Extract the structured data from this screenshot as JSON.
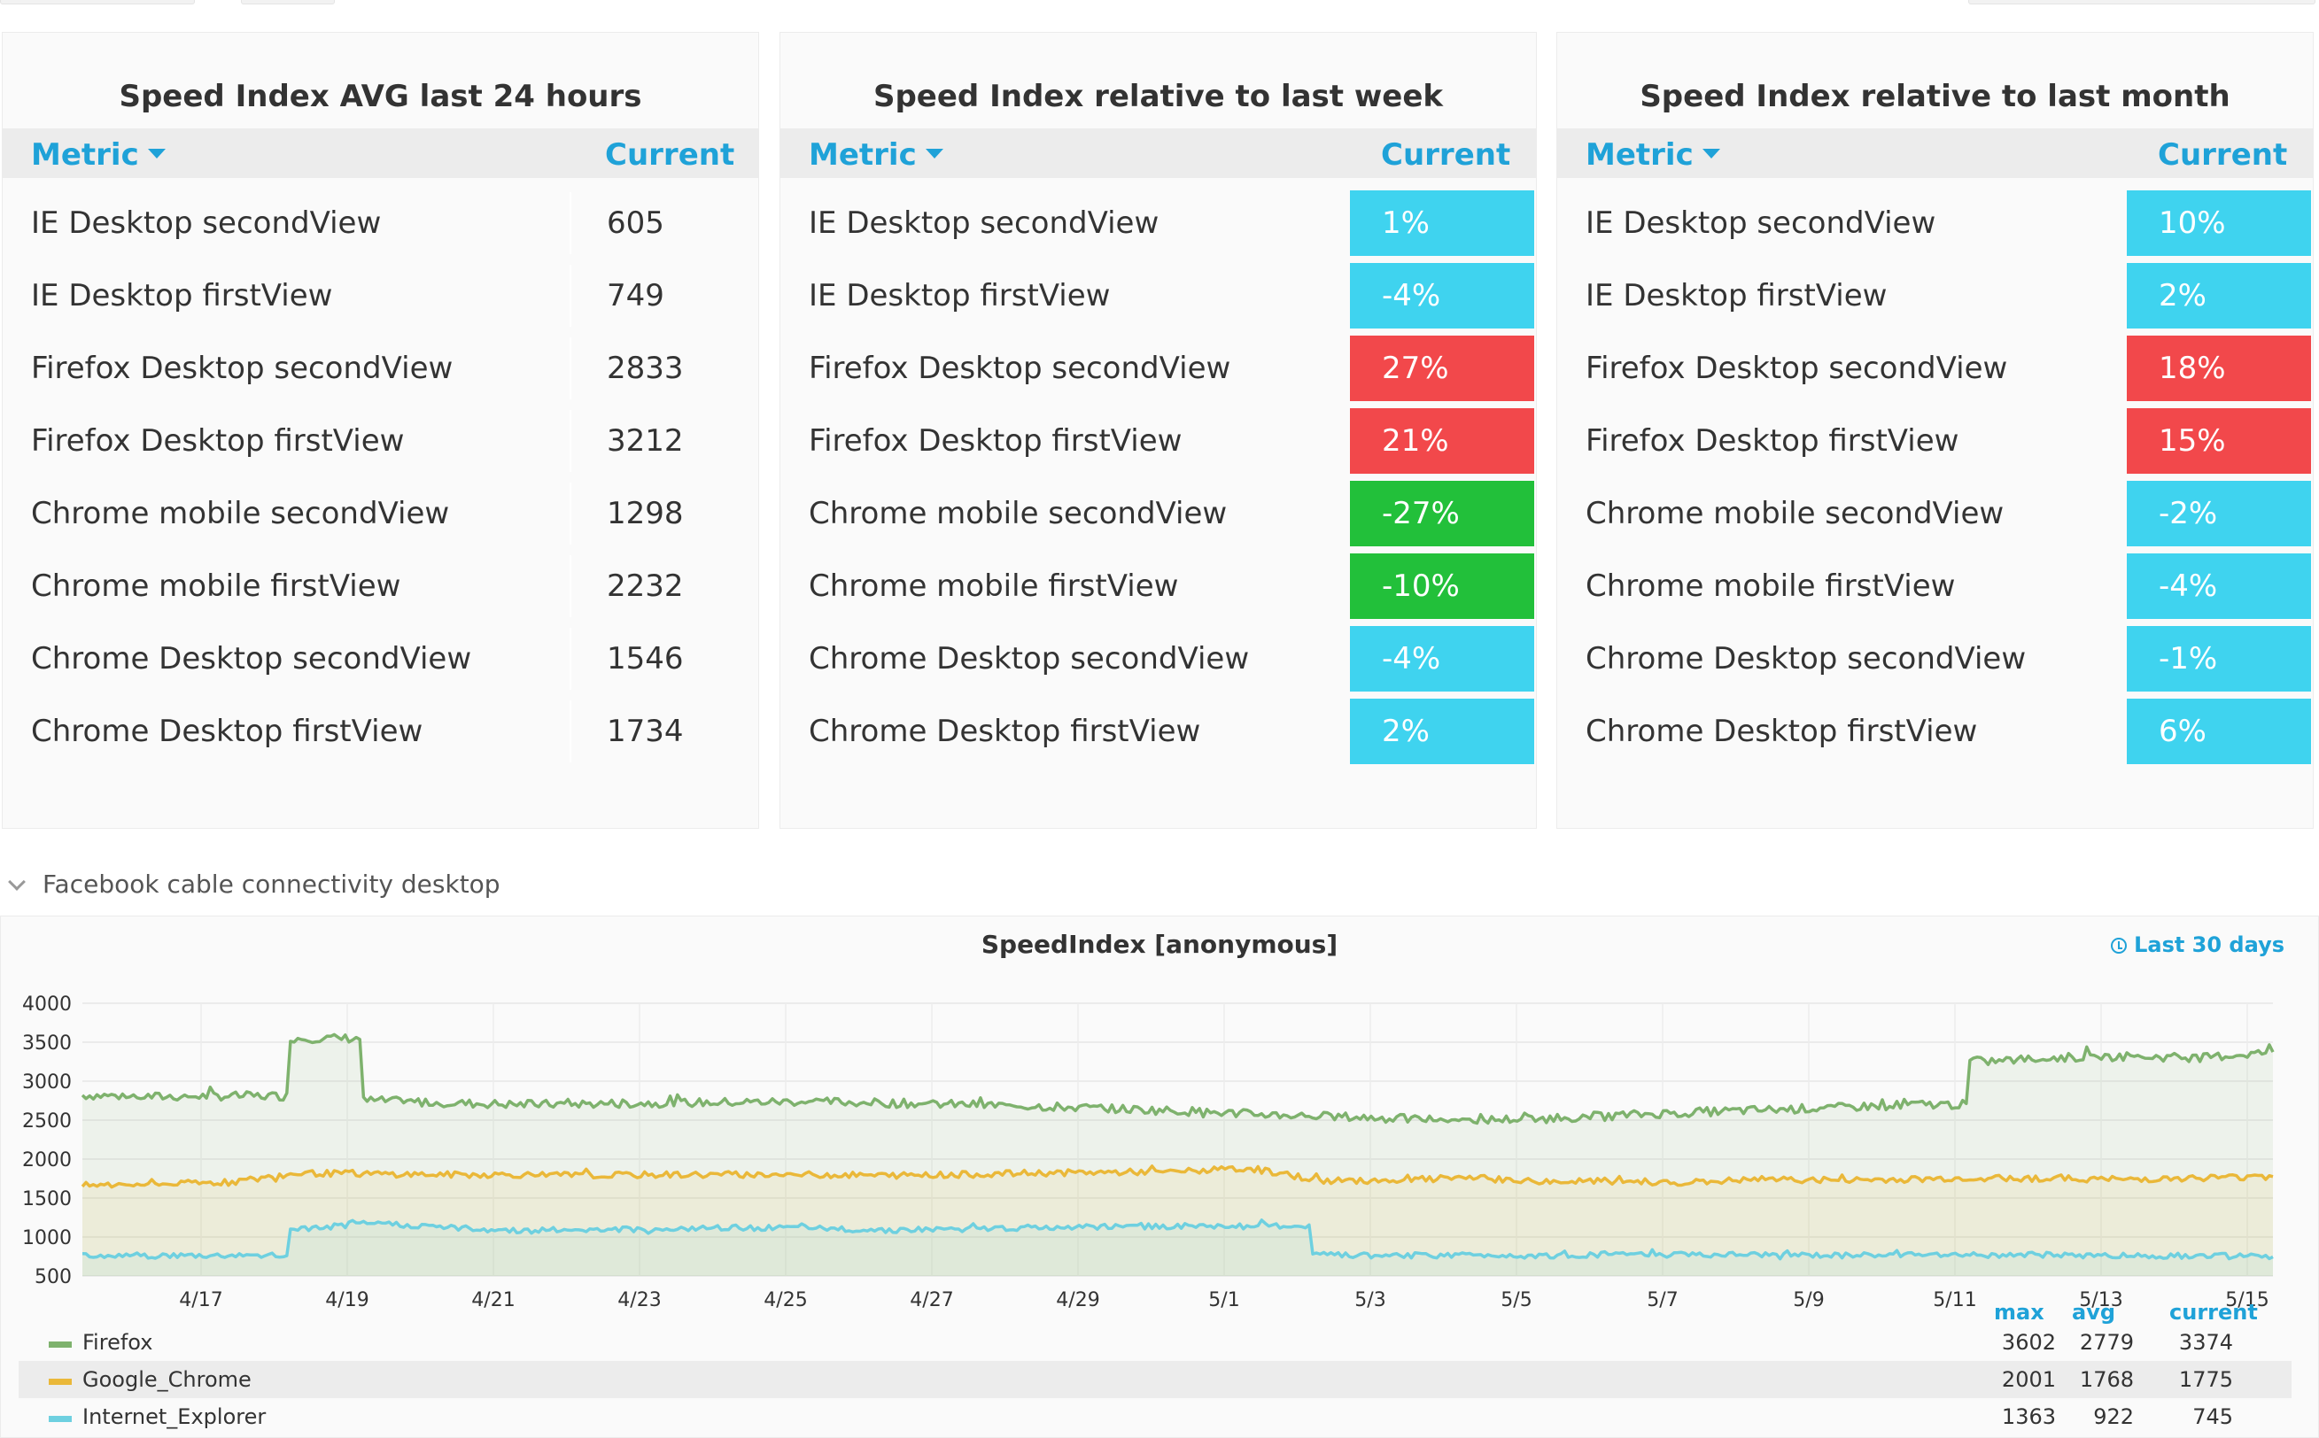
{
  "tables": [
    {
      "title": "Speed Index AVG last 24 hours",
      "metric_label": "Metric",
      "current_label": "Current",
      "rows": [
        {
          "name": "IE Desktop secondView",
          "value": "605"
        },
        {
          "name": "IE Desktop firstView",
          "value": "749"
        },
        {
          "name": "Firefox Desktop secondView",
          "value": "2833"
        },
        {
          "name": "Firefox Desktop firstView",
          "value": "3212"
        },
        {
          "name": "Chrome mobile secondView",
          "value": "1298"
        },
        {
          "name": "Chrome mobile firstView",
          "value": "2232"
        },
        {
          "name": "Chrome Desktop secondView",
          "value": "1546"
        },
        {
          "name": "Chrome Desktop firstView",
          "value": "1734"
        }
      ]
    },
    {
      "title": "Speed Index relative to last week",
      "metric_label": "Metric",
      "current_label": "Current",
      "rows": [
        {
          "name": "IE Desktop secondView",
          "value": "1%",
          "color": "#3fd3ef"
        },
        {
          "name": "IE Desktop firstView",
          "value": "-4%",
          "color": "#3fd3ef"
        },
        {
          "name": "Firefox Desktop secondView",
          "value": "27%",
          "color": "#f2484b"
        },
        {
          "name": "Firefox Desktop firstView",
          "value": "21%",
          "color": "#f2484b"
        },
        {
          "name": "Chrome mobile secondView",
          "value": "-27%",
          "color": "#22c03a"
        },
        {
          "name": "Chrome mobile firstView",
          "value": "-10%",
          "color": "#22c03a"
        },
        {
          "name": "Chrome Desktop secondView",
          "value": "-4%",
          "color": "#3fd3ef"
        },
        {
          "name": "Chrome Desktop firstView",
          "value": "2%",
          "color": "#3fd3ef"
        }
      ]
    },
    {
      "title": "Speed Index relative to last month",
      "metric_label": "Metric",
      "current_label": "Current",
      "rows": [
        {
          "name": "IE Desktop secondView",
          "value": "10%",
          "color": "#3fd3ef"
        },
        {
          "name": "IE Desktop firstView",
          "value": "2%",
          "color": "#3fd3ef"
        },
        {
          "name": "Firefox Desktop secondView",
          "value": "18%",
          "color": "#f2484b"
        },
        {
          "name": "Firefox Desktop firstView",
          "value": "15%",
          "color": "#f2484b"
        },
        {
          "name": "Chrome mobile secondView",
          "value": "-2%",
          "color": "#3fd3ef"
        },
        {
          "name": "Chrome mobile firstView",
          "value": "-4%",
          "color": "#3fd3ef"
        },
        {
          "name": "Chrome Desktop secondView",
          "value": "-1%",
          "color": "#3fd3ef"
        },
        {
          "name": "Chrome Desktop firstView",
          "value": "6%",
          "color": "#3fd3ef"
        }
      ]
    }
  ],
  "section": {
    "title": "Facebook cable connectivity desktop",
    "icon": "chevron-down-icon"
  },
  "graph": {
    "title": "SpeedIndex [anonymous]",
    "time_range": "Last 30 days",
    "time_range_icon": "clock-icon",
    "legend_headers": {
      "max": "max",
      "avg": "avg",
      "current": "current"
    },
    "legend": [
      {
        "name": "Firefox",
        "max": "3602",
        "avg": "2779",
        "current": "3374",
        "color": "#7eb26d"
      },
      {
        "name": "Google_Chrome",
        "max": "2001",
        "avg": "1768",
        "current": "1775",
        "color": "#eab839"
      },
      {
        "name": "Internet_Explorer",
        "max": "1363",
        "avg": "922",
        "current": "745",
        "color": "#6ed0e0"
      }
    ]
  },
  "chart_data": {
    "type": "line",
    "title": "SpeedIndex [anonymous]",
    "xlabel": "",
    "ylabel": "",
    "x_ticks": [
      "4/17",
      "4/19",
      "4/21",
      "4/23",
      "4/25",
      "4/27",
      "4/29",
      "5/1",
      "5/3",
      "5/5",
      "5/7",
      "5/9",
      "5/11",
      "5/13",
      "5/15"
    ],
    "y_ticks": [
      500,
      1000,
      1500,
      2000,
      2500,
      3000,
      3500,
      4000
    ],
    "ylim": [
      500,
      4000
    ],
    "grid": true,
    "legend_position": "bottom",
    "x": [
      "4/16",
      "4/17",
      "4/18",
      "4/19",
      "4/20",
      "4/21",
      "4/22",
      "4/23",
      "4/24",
      "4/25",
      "4/26",
      "4/27",
      "4/28",
      "4/29",
      "4/30",
      "5/1",
      "5/2",
      "5/3",
      "5/4",
      "5/5",
      "5/6",
      "5/7",
      "5/8",
      "5/9",
      "5/10",
      "5/11",
      "5/12",
      "5/13",
      "5/14",
      "5/15",
      "5/15"
    ],
    "series": [
      {
        "name": "Firefox",
        "color": "#7eb26d",
        "values": [
          2820,
          2800,
          2810,
          3550,
          2750,
          2720,
          2700,
          2710,
          2720,
          2730,
          2740,
          2720,
          2700,
          2680,
          2650,
          2620,
          2580,
          2550,
          2520,
          2500,
          2520,
          2560,
          2600,
          2630,
          2660,
          2700,
          3250,
          3300,
          3320,
          3300,
          3374
        ]
      },
      {
        "name": "Google_Chrome",
        "color": "#eab839",
        "values": [
          1660,
          1680,
          1700,
          1820,
          1810,
          1800,
          1800,
          1790,
          1800,
          1800,
          1800,
          1790,
          1800,
          1820,
          1830,
          1840,
          1880,
          1720,
          1730,
          1760,
          1710,
          1720,
          1700,
          1740,
          1730,
          1740,
          1760,
          1750,
          1740,
          1760,
          1775
        ]
      },
      {
        "name": "Internet_Explorer",
        "color": "#6ed0e0",
        "values": [
          770,
          760,
          760,
          1100,
          1180,
          1120,
          1080,
          1100,
          1100,
          1120,
          1110,
          1090,
          1100,
          1120,
          1130,
          1140,
          1140,
          770,
          760,
          770,
          760,
          780,
          770,
          770,
          760,
          770,
          770,
          770,
          760,
          760,
          745
        ]
      }
    ]
  }
}
